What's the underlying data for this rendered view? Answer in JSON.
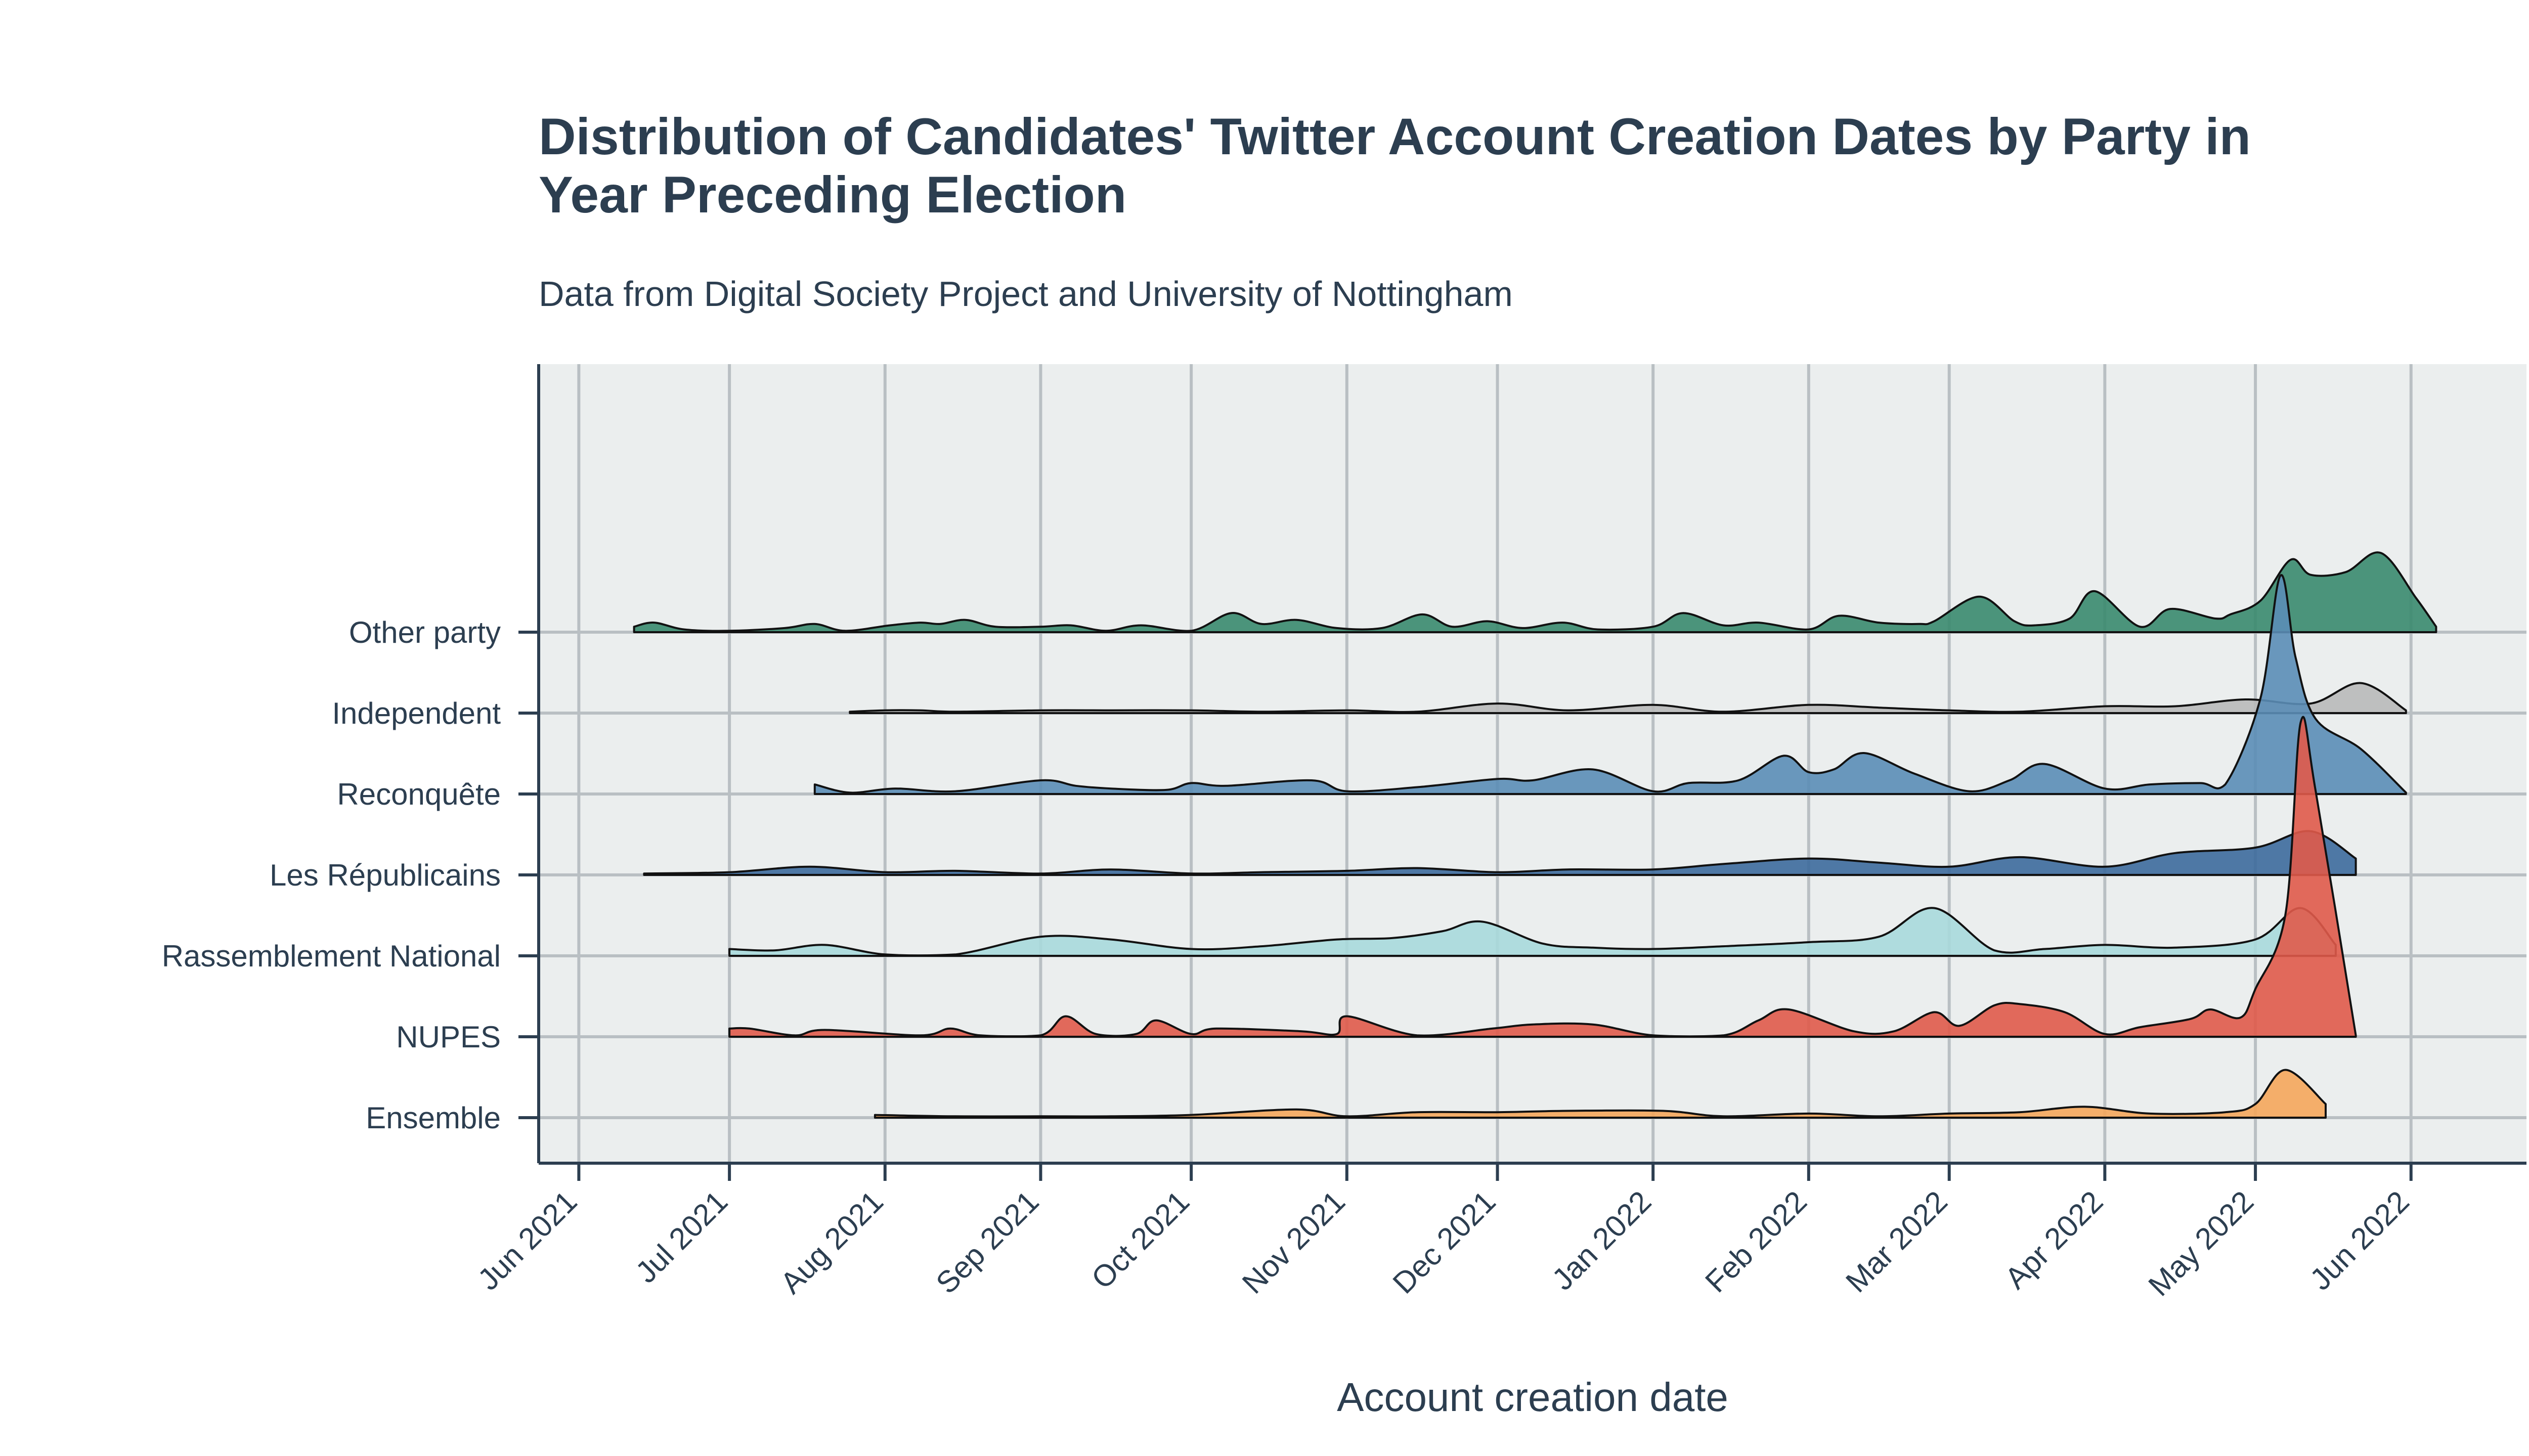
{
  "chart_data": {
    "type": "area",
    "subtype": "ridgeline",
    "title": "Distribution of Candidates' Twitter Account Creation Dates by Party in Year Preceding Election",
    "title_lines": [
      "Distribution of Candidates' Twitter Account Creation Dates by Party in",
      "Year Preceding Election"
    ],
    "subtitle": "Data from Digital Society Project and University of Nottingham",
    "xlabel": "Account creation date",
    "ylabel": "",
    "x_ticks": [
      "Jun 2021",
      "Jul 2021",
      "Aug 2021",
      "Sep 2021",
      "Oct 2021",
      "Nov 2021",
      "Dec 2021",
      "Jan 2022",
      "Feb 2022",
      "Mar 2022",
      "Apr 2022",
      "May 2022",
      "Jun 2022"
    ],
    "xlim": [
      "2021-05-24",
      "2022-06-24"
    ],
    "grid": true,
    "legend": "none",
    "series": [
      {
        "name": "Other party",
        "color": "#3a8a6e",
        "x": [
          "2021-06-12",
          "2021-06-16",
          "2021-06-22",
          "2021-07-01",
          "2021-07-12",
          "2021-07-18",
          "2021-07-24",
          "2021-08-02",
          "2021-08-08",
          "2021-08-12",
          "2021-08-17",
          "2021-08-23",
          "2021-09-01",
          "2021-09-07",
          "2021-09-14",
          "2021-09-21",
          "2021-10-01",
          "2021-10-09",
          "2021-10-15",
          "2021-10-22",
          "2021-10-30",
          "2021-11-08",
          "2021-11-16",
          "2021-11-22",
          "2021-11-29",
          "2021-12-06",
          "2021-12-14",
          "2021-12-21",
          "2022-01-01",
          "2022-01-07",
          "2022-01-15",
          "2022-01-22",
          "2022-02-01",
          "2022-02-07",
          "2022-02-15",
          "2022-02-23",
          "2022-02-26",
          "2022-03-07",
          "2022-03-14",
          "2022-03-18",
          "2022-03-25",
          "2022-03-30",
          "2022-04-08",
          "2022-04-14",
          "2022-04-23",
          "2022-04-26",
          "2022-05-02",
          "2022-05-08",
          "2022-05-12",
          "2022-05-19",
          "2022-05-26",
          "2022-06-02",
          "2022-06-06"
        ],
        "y": [
          0.04,
          0.07,
          0.02,
          0.01,
          0.03,
          0.06,
          0.01,
          0.05,
          0.07,
          0.06,
          0.09,
          0.04,
          0.04,
          0.05,
          0.01,
          0.05,
          0.01,
          0.14,
          0.06,
          0.09,
          0.03,
          0.03,
          0.13,
          0.04,
          0.08,
          0.03,
          0.07,
          0.02,
          0.04,
          0.14,
          0.05,
          0.07,
          0.02,
          0.12,
          0.07,
          0.06,
          0.08,
          0.26,
          0.08,
          0.05,
          0.1,
          0.3,
          0.04,
          0.17,
          0.1,
          0.13,
          0.23,
          0.53,
          0.42,
          0.44,
          0.58,
          0.25,
          0.04
        ]
      },
      {
        "name": "Independent",
        "color": "#b9b9b9",
        "x": [
          "2021-07-25",
          "2021-08-01",
          "2021-08-08",
          "2021-08-15",
          "2021-09-01",
          "2021-09-15",
          "2021-10-01",
          "2021-10-15",
          "2021-11-01",
          "2021-11-15",
          "2021-12-01",
          "2021-12-15",
          "2022-01-01",
          "2022-01-15",
          "2022-02-01",
          "2022-02-15",
          "2022-03-01",
          "2022-03-15",
          "2022-04-01",
          "2022-04-15",
          "2022-04-29",
          "2022-05-12",
          "2022-05-22",
          "2022-05-31"
        ],
        "y": [
          0.01,
          0.02,
          0.02,
          0.01,
          0.02,
          0.02,
          0.02,
          0.01,
          0.02,
          0.01,
          0.07,
          0.02,
          0.06,
          0.01,
          0.06,
          0.04,
          0.02,
          0.01,
          0.05,
          0.05,
          0.1,
          0.07,
          0.22,
          0.02
        ]
      },
      {
        "name": "Reconquête",
        "color": "#5b8db6",
        "x": [
          "2021-07-18",
          "2021-07-25",
          "2021-08-03",
          "2021-08-15",
          "2021-09-01",
          "2021-09-08",
          "2021-09-15",
          "2021-09-26",
          "2021-10-01",
          "2021-10-08",
          "2021-10-25",
          "2021-11-01",
          "2021-11-15",
          "2021-12-01",
          "2021-12-08",
          "2021-12-20",
          "2022-01-01",
          "2022-01-08",
          "2022-01-18",
          "2022-01-27",
          "2022-02-01",
          "2022-02-06",
          "2022-02-12",
          "2022-02-22",
          "2022-03-05",
          "2022-03-13",
          "2022-03-20",
          "2022-04-01",
          "2022-04-10",
          "2022-04-20",
          "2022-04-25",
          "2022-05-02",
          "2022-05-06",
          "2022-05-09",
          "2022-05-13",
          "2022-05-22",
          "2022-05-31"
        ],
        "y": [
          0.07,
          0.01,
          0.04,
          0.02,
          0.1,
          0.06,
          0.04,
          0.03,
          0.08,
          0.06,
          0.1,
          0.02,
          0.05,
          0.11,
          0.1,
          0.18,
          0.02,
          0.08,
          0.1,
          0.28,
          0.16,
          0.18,
          0.3,
          0.15,
          0.02,
          0.1,
          0.22,
          0.04,
          0.07,
          0.08,
          0.07,
          0.7,
          1.6,
          1.0,
          0.55,
          0.33,
          0.01
        ]
      },
      {
        "name": "Les Républicains",
        "color": "#3d6a9c",
        "x": [
          "2021-06-14",
          "2021-07-01",
          "2021-07-17",
          "2021-08-01",
          "2021-08-15",
          "2021-09-01",
          "2021-09-15",
          "2021-10-01",
          "2021-10-15",
          "2021-11-01",
          "2021-11-15",
          "2021-12-01",
          "2021-12-15",
          "2022-01-01",
          "2022-01-15",
          "2022-02-01",
          "2022-02-15",
          "2022-03-01",
          "2022-03-15",
          "2022-04-01",
          "2022-04-15",
          "2022-05-01",
          "2022-05-12",
          "2022-05-21"
        ],
        "y": [
          0.01,
          0.02,
          0.06,
          0.02,
          0.03,
          0.01,
          0.04,
          0.01,
          0.02,
          0.03,
          0.05,
          0.02,
          0.04,
          0.04,
          0.08,
          0.12,
          0.09,
          0.06,
          0.13,
          0.06,
          0.16,
          0.2,
          0.32,
          0.12
        ]
      },
      {
        "name": "Rassemblement National",
        "color": "#a9d9dc",
        "x": [
          "2021-07-01",
          "2021-07-10",
          "2021-07-20",
          "2021-08-01",
          "2021-08-15",
          "2021-09-01",
          "2021-09-15",
          "2021-10-01",
          "2021-10-15",
          "2021-10-30",
          "2021-11-10",
          "2021-11-20",
          "2021-11-28",
          "2021-12-10",
          "2021-12-20",
          "2022-01-01",
          "2022-01-15",
          "2022-02-01",
          "2022-02-15",
          "2022-02-26",
          "2022-03-10",
          "2022-03-20",
          "2022-04-01",
          "2022-04-15",
          "2022-05-01",
          "2022-05-10",
          "2022-05-17"
        ],
        "y": [
          0.05,
          0.04,
          0.08,
          0.01,
          0.01,
          0.14,
          0.12,
          0.05,
          0.07,
          0.12,
          0.13,
          0.18,
          0.25,
          0.09,
          0.06,
          0.05,
          0.07,
          0.1,
          0.14,
          0.35,
          0.04,
          0.05,
          0.08,
          0.06,
          0.12,
          0.35,
          0.08
        ]
      },
      {
        "name": "NUPES",
        "color": "#e05a4a",
        "x": [
          "2021-07-01",
          "2021-07-05",
          "2021-07-14",
          "2021-07-20",
          "2021-08-08",
          "2021-08-14",
          "2021-08-20",
          "2021-09-01",
          "2021-09-06",
          "2021-09-12",
          "2021-09-20",
          "2021-09-24",
          "2021-10-01",
          "2021-10-06",
          "2021-10-23",
          "2021-10-30",
          "2021-11-01",
          "2021-11-15",
          "2021-11-30",
          "2021-12-08",
          "2021-12-20",
          "2022-01-01",
          "2022-01-15",
          "2022-01-22",
          "2022-01-28",
          "2022-02-10",
          "2022-02-18",
          "2022-02-26",
          "2022-03-03",
          "2022-03-10",
          "2022-03-15",
          "2022-03-24",
          "2022-04-01",
          "2022-04-08",
          "2022-04-18",
          "2022-04-22",
          "2022-04-28",
          "2022-05-01",
          "2022-05-07",
          "2022-05-10",
          "2022-05-13",
          "2022-05-21"
        ],
        "y": [
          0.06,
          0.06,
          0.01,
          0.05,
          0.01,
          0.06,
          0.01,
          0.01,
          0.15,
          0.02,
          0.02,
          0.12,
          0.02,
          0.06,
          0.04,
          0.02,
          0.15,
          0.01,
          0.06,
          0.09,
          0.09,
          0.01,
          0.01,
          0.12,
          0.2,
          0.04,
          0.04,
          0.18,
          0.08,
          0.23,
          0.24,
          0.18,
          0.02,
          0.07,
          0.13,
          0.2,
          0.14,
          0.35,
          0.9,
          2.3,
          1.8,
          0.01
        ]
      },
      {
        "name": "Ensemble",
        "color": "#f5a65b",
        "x": [
          "2021-07-30",
          "2021-08-15",
          "2021-09-01",
          "2021-09-15",
          "2021-10-01",
          "2021-10-22",
          "2021-11-01",
          "2021-11-15",
          "2021-12-01",
          "2021-12-15",
          "2022-01-03",
          "2022-01-15",
          "2022-02-01",
          "2022-02-15",
          "2022-03-01",
          "2022-03-15",
          "2022-03-28",
          "2022-04-10",
          "2022-04-25",
          "2022-05-01",
          "2022-05-07",
          "2022-05-15"
        ],
        "y": [
          0.02,
          0.01,
          0.01,
          0.01,
          0.02,
          0.06,
          0.01,
          0.04,
          0.04,
          0.05,
          0.05,
          0.01,
          0.03,
          0.01,
          0.03,
          0.04,
          0.08,
          0.03,
          0.04,
          0.1,
          0.35,
          0.1
        ]
      }
    ]
  }
}
